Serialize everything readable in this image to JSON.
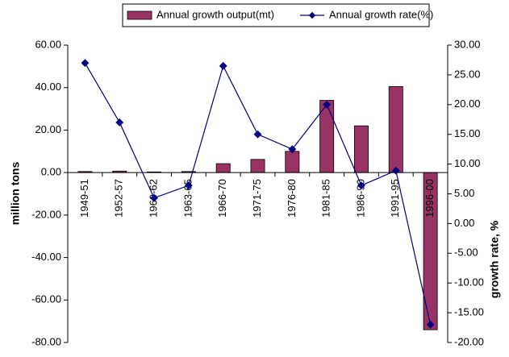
{
  "chart_data": {
    "type": "bar-line",
    "categories": [
      "1949-51",
      "1952-57",
      "1960-62",
      "1963-65",
      "1966-70",
      "1971-75",
      "1976-80",
      "1981-85",
      "1986-90",
      "1991-95",
      "1996-00"
    ],
    "series": [
      {
        "name": "Annual growth output(mt)",
        "type": "bar",
        "color": "#993366",
        "values": [
          0.5,
          0.7,
          0.3,
          0.5,
          4.2,
          6.2,
          10.0,
          34.0,
          22.0,
          40.5,
          -74.0
        ]
      },
      {
        "name": "Annual growth rate(%)",
        "type": "line",
        "axis": "y2",
        "color": "#000080",
        "values": [
          27.0,
          17.0,
          4.3,
          6.4,
          26.5,
          15.0,
          12.5,
          20.0,
          6.4,
          8.9,
          -17.0
        ]
      }
    ],
    "y_label": "million tons",
    "y2_label": "growth rate, %",
    "ylim": [
      -80,
      60
    ],
    "yticks": [
      {
        "value": -80,
        "label": "-80.00"
      },
      {
        "value": -60,
        "label": "-60.00"
      },
      {
        "value": -40,
        "label": "-40.00"
      },
      {
        "value": -20,
        "label": "-20.00"
      },
      {
        "value": 0,
        "label": "0.00"
      },
      {
        "value": 20,
        "label": "20.00"
      },
      {
        "value": 40,
        "label": "40.00"
      },
      {
        "value": 60,
        "label": "60.00"
      }
    ],
    "y2lim": [
      -20,
      30
    ],
    "y2ticks": [
      {
        "value": -20,
        "label": "-20.00"
      },
      {
        "value": -15,
        "label": "-15.00"
      },
      {
        "value": -10,
        "label": "-10.00"
      },
      {
        "value": -5,
        "label": "-5.00"
      },
      {
        "value": 0,
        "label": "0.00"
      },
      {
        "value": 5,
        "label": "5.00"
      },
      {
        "value": 10,
        "label": "10.00"
      },
      {
        "value": 15,
        "label": "15.00"
      },
      {
        "value": 20,
        "label": "20.00"
      },
      {
        "value": 25,
        "label": "25.00"
      },
      {
        "value": 30,
        "label": "30.00"
      }
    ],
    "legend": "top"
  }
}
